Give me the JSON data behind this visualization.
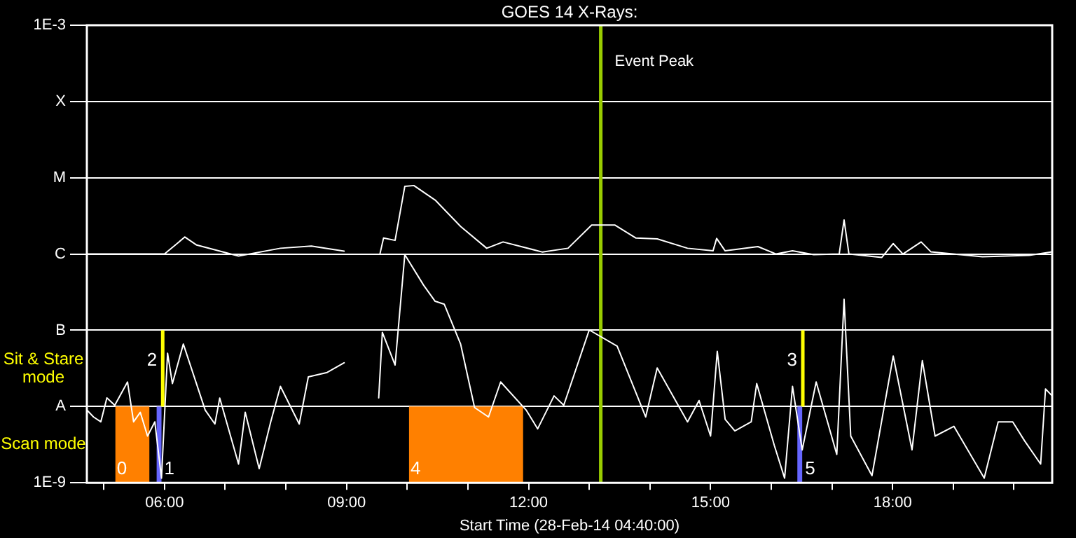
{
  "chart_data": {
    "type": "line",
    "title": "GOES 14 X-Rays:",
    "xlabel": "Start Time (28-Feb-14 04:40:00)",
    "xlim": [
      4.72,
      20.63
    ],
    "xticks": [
      {
        "value": 5,
        "label": null
      },
      {
        "value": 6,
        "label": "06:00"
      },
      {
        "value": 7,
        "label": null
      },
      {
        "value": 8,
        "label": null
      },
      {
        "value": 9,
        "label": "09:00"
      },
      {
        "value": 10,
        "label": null
      },
      {
        "value": 11,
        "label": null
      },
      {
        "value": 12,
        "label": "12:00"
      },
      {
        "value": 13,
        "label": null
      },
      {
        "value": 14,
        "label": null
      },
      {
        "value": 15,
        "label": "15:00"
      },
      {
        "value": 16,
        "label": null
      },
      {
        "value": 17,
        "label": null
      },
      {
        "value": 18,
        "label": "18:00"
      },
      {
        "value": 19,
        "label": null
      },
      {
        "value": 20,
        "label": null
      }
    ],
    "log": "y",
    "ylim": [
      1e-09,
      0.001
    ],
    "yticks": [
      {
        "value": 1e-09,
        "label": "1E-9"
      },
      {
        "value": 1e-08,
        "label": "A"
      },
      {
        "value": 1e-07,
        "label": "B"
      },
      {
        "value": 1e-06,
        "label": "C"
      },
      {
        "value": 1e-05,
        "label": "M"
      },
      {
        "value": 0.0001,
        "label": "X"
      },
      {
        "value": 0.001,
        "label": "1E-3"
      }
    ],
    "grid": "y",
    "legend": false,
    "line_style": "solid",
    "marker": "none",
    "series": [
      {
        "color": "#ffffff",
        "x": [
          4.72,
          5.5,
          6.0,
          6.335,
          6.53,
          7.22,
          7.91,
          8.42,
          8.96,
          9.2,
          9.55,
          9.61,
          9.8,
          9.96,
          10.11,
          10.46,
          10.88,
          11.31,
          11.58,
          12.23,
          12.65,
          13.04,
          13.42,
          13.77,
          14.12,
          14.62,
          15.04,
          15.1,
          15.24,
          15.78,
          16.08,
          16.35,
          16.7,
          17.12,
          17.2,
          17.28,
          17.82,
          18.01,
          18.17,
          18.47,
          18.63,
          19.48,
          20.25,
          20.63
        ],
        "values": [
          1e-06,
          1e-06,
          1e-06,
          1.67e-06,
          1.31e-06,
          9.4e-07,
          1.19e-06,
          1.27e-06,
          1.09e-06,
          null,
          1e-06,
          1.62e-06,
          1.51e-06,
          7.7e-06,
          7.9e-06,
          5.1e-06,
          2.3e-06,
          1.19e-06,
          1.44e-06,
          1.06e-06,
          1.19e-06,
          2.4e-06,
          2.4e-06,
          1.62e-06,
          1.58e-06,
          1.19e-06,
          1.1e-06,
          1.6e-06,
          1.1e-06,
          1.25e-06,
          1e-06,
          1.1e-06,
          9.8e-07,
          1e-06,
          2.8e-06,
          1e-06,
          9e-07,
          1.37e-06,
          1e-06,
          1.44e-06,
          1.07e-06,
          9.2e-07,
          9.6e-07,
          1.07e-06
        ]
      },
      {
        "color": "#ffffff",
        "x": [
          4.72,
          4.83,
          4.95,
          5.05,
          5.18,
          5.39,
          5.49,
          5.6,
          5.72,
          5.84,
          5.95,
          6.05,
          6.13,
          6.31,
          6.67,
          6.83,
          6.91,
          7.22,
          7.33,
          7.56,
          7.75,
          7.91,
          8.22,
          8.37,
          8.68,
          8.96,
          9.2,
          9.53,
          9.59,
          9.8,
          9.96,
          10.27,
          10.46,
          10.61,
          10.88,
          11.11,
          11.34,
          11.54,
          11.96,
          12.15,
          12.42,
          12.58,
          13.0,
          13.46,
          13.93,
          14.12,
          14.62,
          14.81,
          15.0,
          15.11,
          15.24,
          15.4,
          15.67,
          15.76,
          16.05,
          16.22,
          16.35,
          16.51,
          16.74,
          17.08,
          17.2,
          17.31,
          17.66,
          18.01,
          18.32,
          18.49,
          18.7,
          19.01,
          19.51,
          19.74,
          19.98,
          20.17,
          20.44,
          20.52,
          20.63
        ],
        "values": [
          9e-09,
          7.3e-09,
          6.3e-09,
          1.3e-08,
          1.04e-08,
          2.1e-08,
          6.3e-09,
          8.4e-09,
          4.1e-09,
          6.3e-09,
          1.15e-09,
          5e-08,
          2e-08,
          6.6e-08,
          9e-09,
          5.9e-09,
          1.29e-08,
          1.76e-09,
          8.4e-09,
          1.53e-09,
          6.3e-09,
          1.84e-08,
          5.9e-09,
          2.45e-08,
          2.8e-08,
          3.75e-08,
          null,
          1.3e-08,
          9.4e-08,
          3.5e-08,
          9.8e-07,
          3.9e-07,
          2.4e-07,
          2.2e-07,
          6.6e-08,
          9.7e-09,
          7.3e-09,
          2.1e-08,
          9e-09,
          5.1e-09,
          1.38e-08,
          1.04e-08,
          1.01e-07,
          6.2e-08,
          7.3e-09,
          3.2e-08,
          6.3e-09,
          1.2e-08,
          4.1e-09,
          5.3e-08,
          6.8e-09,
          4.8e-09,
          6.3e-09,
          2e-08,
          3.1e-09,
          1.15e-09,
          1.84e-08,
          2.7e-09,
          2.1e-08,
          2.35e-09,
          2.55e-07,
          4.1e-09,
          1.24e-09,
          4.6e-08,
          2.7e-09,
          4e-08,
          4.1e-09,
          5.5e-09,
          1.15e-09,
          6.3e-09,
          6.3e-09,
          3.6e-09,
          1.76e-09,
          1.7e-08,
          1.38e-08
        ]
      }
    ],
    "ref_lines": [
      {
        "axis": "x",
        "value": 13.19,
        "label": "Event Peak",
        "color": "#99cc00"
      },
      {
        "axis": "x",
        "value": 5.97,
        "color": "#ffff00"
      },
      {
        "axis": "x",
        "value": 16.52,
        "color": "#ffff00"
      }
    ],
    "bands": [
      {
        "axis": "x",
        "from": 5.19,
        "to": 5.75,
        "label": "0",
        "color": "#ff8000"
      },
      {
        "axis": "x",
        "from": 5.87,
        "to": 5.95,
        "label": "1",
        "color": "#6666ff"
      },
      {
        "axis": "x",
        "from": 10.03,
        "to": 11.91,
        "label": "4",
        "color": "#ff8000"
      },
      {
        "axis": "x",
        "from": 16.43,
        "to": 16.51,
        "label": "5",
        "color": "#6666ff"
      }
    ],
    "annotations": [
      "Sit & Stare mode",
      "Scan mode",
      {
        "text": "2",
        "x": 5.97,
        "y": 4e-08
      },
      {
        "text": "3",
        "x": 16.52,
        "y": 4e-08
      }
    ]
  }
}
